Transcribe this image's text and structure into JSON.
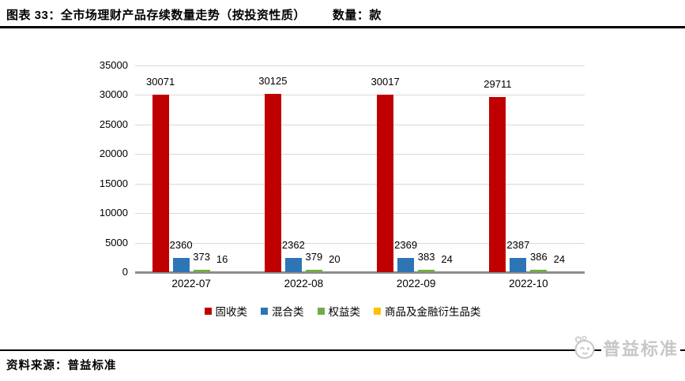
{
  "header": {
    "title": "图表 33：全市场理财产品存续数量走势（按投资性质）",
    "unit_label": "数量：款"
  },
  "chart_data": {
    "type": "bar",
    "title": "全市场理财产品存续数量走势（按投资性质）",
    "categories": [
      "2022-07",
      "2022-08",
      "2022-09",
      "2022-10"
    ],
    "series": [
      {
        "name": "固收类",
        "color": "#c00000",
        "values": [
          30071,
          30125,
          30017,
          29711
        ]
      },
      {
        "name": "混合类",
        "color": "#2e75b6",
        "values": [
          2360,
          2362,
          2369,
          2387
        ]
      },
      {
        "name": "权益类",
        "color": "#70ad47",
        "values": [
          373,
          379,
          383,
          386
        ]
      },
      {
        "name": "商品及金融衍生品类",
        "color": "#ffc000",
        "values": [
          16,
          20,
          24,
          24
        ]
      }
    ],
    "ylim": [
      0,
      35000
    ],
    "ytick_step": 5000,
    "yticks": [
      "35000",
      "30000",
      "25000",
      "20000",
      "15000",
      "10000",
      "5000",
      "0"
    ],
    "grid": true,
    "gridline_color": "#d9d9d9",
    "axis_color": "#8c8c8c",
    "legend_position": "bottom",
    "data_labels": true
  },
  "footer": {
    "source": "资料来源：普益标准"
  },
  "watermark": {
    "text": "普益标准"
  }
}
